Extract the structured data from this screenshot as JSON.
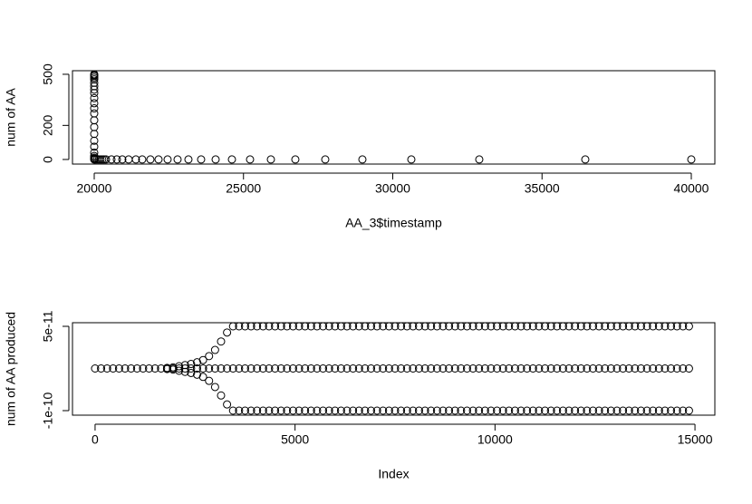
{
  "chart_data": [
    {
      "type": "scatter",
      "xlabel": "AA_3$timestamp",
      "ylabel": "num of AA",
      "color": "#000000",
      "x": [
        20000,
        20000,
        20000,
        20000,
        20000,
        20000,
        20000,
        20000,
        20000,
        20000,
        20000,
        20000,
        20000,
        20000,
        20000,
        20000,
        20000,
        20000,
        20000,
        20000,
        20000,
        20000,
        20000,
        20030,
        20090,
        20150,
        20210,
        20270,
        20330,
        20395,
        20577,
        20759,
        20941,
        21153,
        21396,
        21608,
        21882,
        22155,
        22458,
        22792,
        23156,
        23581,
        24067,
        24613,
        25220,
        25918,
        26737,
        27739,
        28983,
        30622,
        32898,
        36449,
        40000
      ],
      "values": [
        0,
        5,
        10,
        20,
        40,
        75,
        110,
        150,
        190,
        230,
        270,
        300,
        330,
        360,
        390,
        410,
        430,
        450,
        470,
        480,
        490,
        495,
        500,
        0,
        0,
        0,
        0,
        0,
        0,
        0,
        0,
        0,
        0,
        0,
        0,
        0,
        0,
        0,
        0,
        0,
        0,
        0,
        0,
        0,
        0,
        0,
        0,
        0,
        0,
        0,
        0,
        0,
        0
      ],
      "xlim": [
        19272,
        40789
      ],
      "ylim": [
        -27,
        521
      ],
      "xticks": [
        20000,
        25000,
        30000,
        35000,
        40000
      ],
      "yticks": [
        0,
        200,
        500
      ]
    },
    {
      "type": "scatter",
      "xlabel": "Index",
      "ylabel": "num of AA produced",
      "color": "#000000",
      "x": [
        0,
        150,
        300,
        450,
        600,
        750,
        900,
        1050,
        1200,
        1350,
        1500,
        1650,
        1800,
        1950,
        2100,
        2250,
        2400,
        2550,
        2700,
        2850,
        3000,
        3150,
        3300,
        3450,
        3600,
        3750,
        3900,
        4050,
        4200,
        4350,
        4500,
        4650,
        4800,
        4950,
        5100,
        5250,
        5400,
        5550,
        5700,
        5850,
        6000,
        6150,
        6300,
        6450,
        6600,
        6750,
        6900,
        7050,
        7200,
        7350,
        7500,
        7650,
        7800,
        7950,
        8100,
        8250,
        8400,
        8550,
        8700,
        8850,
        9000,
        9150,
        9300,
        9450,
        9600,
        9750,
        9900,
        10050,
        10200,
        10350,
        10500,
        10650,
        10800,
        10950,
        11100,
        11250,
        11400,
        11550,
        11700,
        11850,
        12000,
        12150,
        12300,
        12450,
        12600,
        12750,
        12900,
        13050,
        13200,
        13350,
        13500,
        13650,
        13800,
        13950,
        14100,
        14250,
        14400,
        14550,
        14700,
        14850
      ],
      "series": [
        {
          "values": [
            -2.5e-11,
            -2.5e-11,
            -2.5e-11,
            -2.5e-11,
            -2.5e-11,
            -2.5e-11,
            -2.5e-11,
            -2.5e-11,
            -2.5e-11,
            -2.5e-11,
            -2.5e-11,
            -2.5e-11,
            -2.5e-11,
            -2.5e-11,
            -2.5e-11,
            -2.5e-11,
            -2.5e-11,
            -2.5e-11,
            -2.5e-11,
            -2.5e-11,
            -2.5e-11,
            -2.5e-11,
            -2.5e-11,
            -2.5e-11,
            -2.5e-11,
            -2.5e-11,
            -2.5e-11,
            -2.5e-11,
            -2.5e-11,
            -2.5e-11,
            -2.5e-11,
            -2.5e-11,
            -2.5e-11,
            -2.5e-11,
            -2.5e-11,
            -2.5e-11,
            -2.5e-11,
            -2.5e-11,
            -2.5e-11,
            -2.5e-11,
            -2.5e-11,
            -2.5e-11,
            -2.5e-11,
            -2.5e-11,
            -2.5e-11,
            -2.5e-11,
            -2.5e-11,
            -2.5e-11,
            -2.5e-11,
            -2.5e-11,
            -2.5e-11,
            -2.5e-11,
            -2.5e-11,
            -2.5e-11,
            -2.5e-11,
            -2.5e-11,
            -2.5e-11,
            -2.5e-11,
            -2.5e-11,
            -2.5e-11,
            -2.5e-11,
            -2.5e-11,
            -2.5e-11,
            -2.5e-11,
            -2.5e-11,
            -2.5e-11,
            -2.5e-11,
            -2.5e-11,
            -2.5e-11,
            -2.5e-11,
            -2.5e-11,
            -2.5e-11,
            -2.5e-11,
            -2.5e-11,
            -2.5e-11,
            -2.5e-11,
            -2.5e-11,
            -2.5e-11,
            -2.5e-11,
            -2.5e-11,
            -2.5e-11,
            -2.5e-11,
            -2.5e-11,
            -2.5e-11,
            -2.5e-11,
            -2.5e-11,
            -2.5e-11,
            -2.5e-11,
            -2.5e-11,
            -2.5e-11,
            -2.5e-11,
            -2.5e-11,
            -2.5e-11,
            -2.5e-11,
            -2.5e-11,
            -2.5e-11,
            -2.5e-11,
            -2.5e-11,
            -2.5e-11,
            -2.5e-11
          ]
        },
        {
          "values": [
            null,
            null,
            null,
            null,
            null,
            null,
            null,
            null,
            null,
            null,
            null,
            null,
            -2.4e-11,
            -2.3e-11,
            -2.1e-11,
            -1.9e-11,
            -1.7e-11,
            -1.4e-11,
            -1e-11,
            -3e-12,
            8e-12,
            2.3e-11,
            3.9e-11,
            5e-11,
            5e-11,
            5e-11,
            5e-11,
            5e-11,
            5e-11,
            5e-11,
            5e-11,
            5e-11,
            5e-11,
            5e-11,
            5e-11,
            5e-11,
            5e-11,
            5e-11,
            5e-11,
            5e-11,
            5e-11,
            5e-11,
            5e-11,
            5e-11,
            5e-11,
            5e-11,
            5e-11,
            5e-11,
            5e-11,
            5e-11,
            5e-11,
            5e-11,
            5e-11,
            5e-11,
            5e-11,
            5e-11,
            5e-11,
            5e-11,
            5e-11,
            5e-11,
            5e-11,
            5e-11,
            5e-11,
            5e-11,
            5e-11,
            5e-11,
            5e-11,
            5e-11,
            5e-11,
            5e-11,
            5e-11,
            5e-11,
            5e-11,
            5e-11,
            5e-11,
            5e-11,
            5e-11,
            5e-11,
            5e-11,
            5e-11,
            5e-11,
            5e-11,
            5e-11,
            5e-11,
            5e-11,
            5e-11,
            5e-11,
            5e-11,
            5e-11,
            5e-11,
            5e-11,
            5e-11,
            5e-11,
            5e-11,
            5e-11,
            5e-11,
            5e-11,
            5e-11,
            5e-11,
            5e-11
          ]
        },
        {
          "values": [
            null,
            null,
            null,
            null,
            null,
            null,
            null,
            null,
            null,
            null,
            null,
            null,
            -2.6e-11,
            -2.7e-11,
            -2.9e-11,
            -3.1e-11,
            -3.3e-11,
            -3.6e-11,
            -4e-11,
            -4.7e-11,
            -5.8e-11,
            -7.3e-11,
            -8.9e-11,
            -1e-10,
            -1e-10,
            -1e-10,
            -1e-10,
            -1e-10,
            -1e-10,
            -1e-10,
            -1e-10,
            -1e-10,
            -1e-10,
            -1e-10,
            -1e-10,
            -1e-10,
            -1e-10,
            -1e-10,
            -1e-10,
            -1e-10,
            -1e-10,
            -1e-10,
            -1e-10,
            -1e-10,
            -1e-10,
            -1e-10,
            -1e-10,
            -1e-10,
            -1e-10,
            -1e-10,
            -1e-10,
            -1e-10,
            -1e-10,
            -1e-10,
            -1e-10,
            -1e-10,
            -1e-10,
            -1e-10,
            -1e-10,
            -1e-10,
            -1e-10,
            -1e-10,
            -1e-10,
            -1e-10,
            -1e-10,
            -1e-10,
            -1e-10,
            -1e-10,
            -1e-10,
            -1e-10,
            -1e-10,
            -1e-10,
            -1e-10,
            -1e-10,
            -1e-10,
            -1e-10,
            -1e-10,
            -1e-10,
            -1e-10,
            -1e-10,
            -1e-10,
            -1e-10,
            -1e-10,
            -1e-10,
            -1e-10,
            -1e-10,
            -1e-10,
            -1e-10,
            -1e-10,
            -1e-10,
            -1e-10,
            -1e-10,
            -1e-10,
            -1e-10,
            -1e-10,
            -1e-10,
            -1e-10,
            -1e-10,
            -1e-10,
            -1e-10
          ]
        }
      ],
      "xlim": [
        -565,
        15497
      ],
      "ylim": [
        -1.0806e-10,
        5.645e-11
      ],
      "xticks": [
        0,
        5000,
        10000,
        15000
      ],
      "yticks": [
        {
          "value": -1e-10,
          "label": "-1e-10"
        },
        {
          "value": 5e-11,
          "label": "5e-11"
        }
      ]
    }
  ]
}
